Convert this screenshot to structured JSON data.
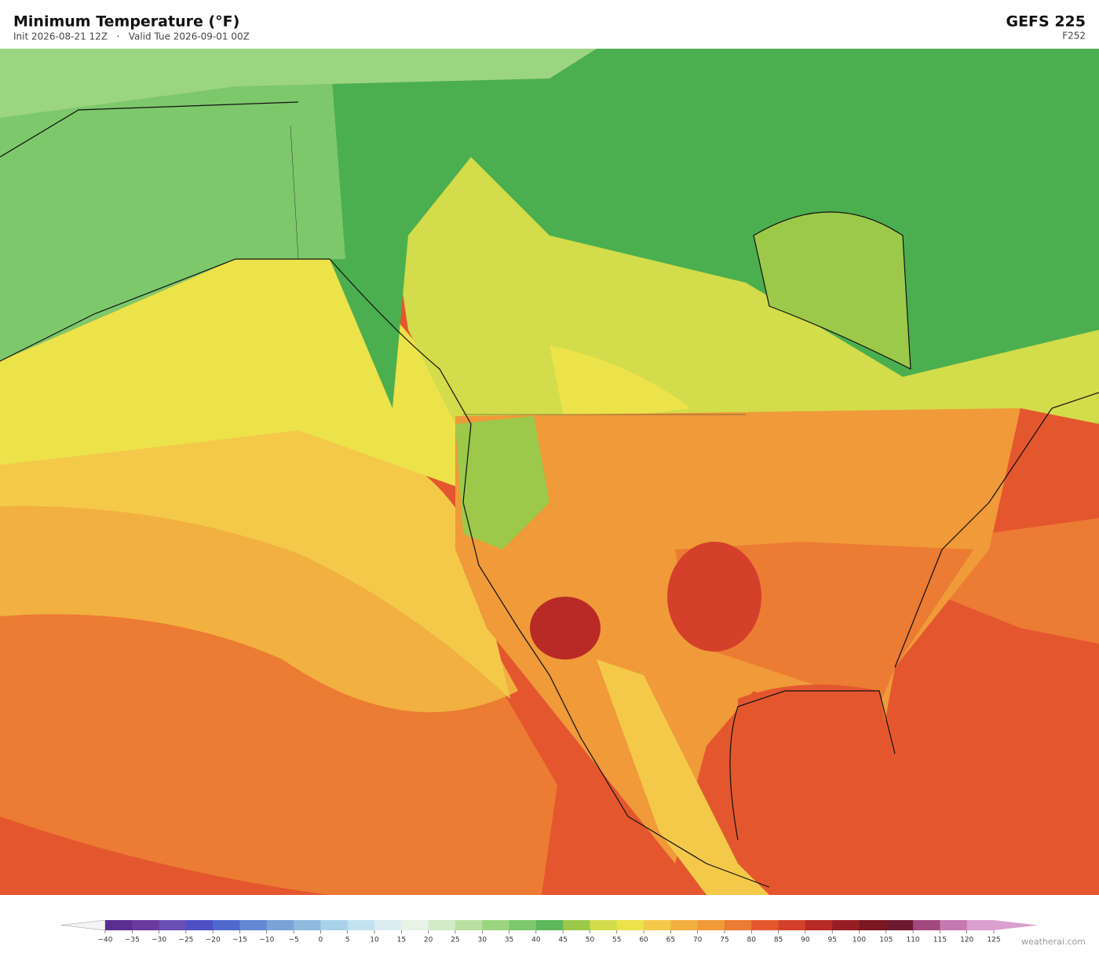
{
  "header": {
    "title": "Minimum Temperature  (°F)",
    "subtitle": "Init 2026-08-21 12Z   ·   Valid Tue 2026-09-01 00Z",
    "model": "GEFS  225",
    "forecast_hour": "F252"
  },
  "colorbar": {
    "range": [
      -40,
      125
    ],
    "ticks": [
      {
        "value": -40,
        "label": "−40"
      },
      {
        "value": -35,
        "label": "−35"
      },
      {
        "value": -30,
        "label": "−30"
      },
      {
        "value": -25,
        "label": "−25"
      },
      {
        "value": -20,
        "label": "−20"
      },
      {
        "value": -15,
        "label": "−15"
      },
      {
        "value": -10,
        "label": "−10"
      },
      {
        "value": -5,
        "label": "−5"
      },
      0,
      5,
      10,
      15,
      20,
      25,
      30,
      35,
      40,
      45,
      50,
      55,
      60,
      65,
      70,
      75,
      80,
      85,
      90,
      95,
      100,
      105,
      110,
      115,
      120,
      125
    ],
    "colors": [
      "#5a2d91",
      "#6a3aa0",
      "#6c4fb5",
      "#4f4fc4",
      "#4f69cf",
      "#6488d4",
      "#7aa3d8",
      "#8fbbe0",
      "#a9d2ea",
      "#c3e2ef",
      "#dcedf2",
      "#e7f3e6",
      "#d2ebc6",
      "#b9e0a0",
      "#9cd57f",
      "#7dc86b",
      "#5cb85a",
      "#9cc94a",
      "#d3dc4a",
      "#ece24a",
      "#f4c94a",
      "#f2b040",
      "#f09a3a",
      "#ec7b33",
      "#e4572e",
      "#d4402a",
      "#b82a26",
      "#961e22",
      "#7c1620",
      "#6e1a2e",
      "#a3477f",
      "#c479b0",
      "#dba0cf"
    ],
    "under_color": "#f4f4f4",
    "over_color": "#dba0cf"
  },
  "watermark": "weatherai.com"
}
